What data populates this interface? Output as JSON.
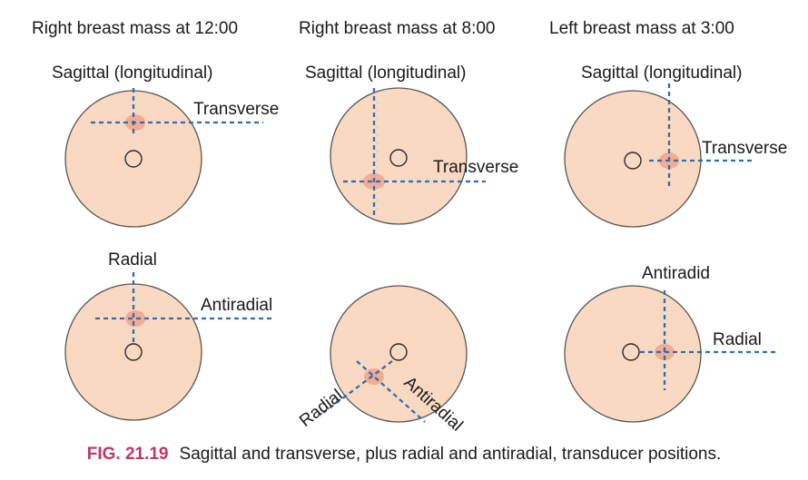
{
  "columns": [
    {
      "title": "Right breast mass at 12:00"
    },
    {
      "title": "Right breast mass at 8:00"
    },
    {
      "title": "Left breast mass at 3:00"
    }
  ],
  "panels": {
    "r12_top": {
      "vertical": "Sagittal (longitudinal)",
      "horizontal": "Transverse"
    },
    "r8_top": {
      "vertical": "Sagittal (longitudinal)",
      "horizontal": "Transverse"
    },
    "l3_top": {
      "vertical": "Sagittal (longitudinal)",
      "horizontal": "Transverse"
    },
    "r12_bottom": {
      "vertical": "Radial",
      "horizontal": "Antiradial"
    },
    "r8_bottom": {
      "radial": "Radial",
      "antiradial": "Antiradial"
    },
    "l3_bottom": {
      "vertical": "Antiradid",
      "horizontal": "Radial"
    }
  },
  "caption": {
    "number": "FIG. 21.19",
    "text": "Sagittal and transverse, plus radial and antiradial, transducer positions."
  },
  "colors": {
    "breast_fill": "#fad9c2",
    "mass": "#f2a98f",
    "transducer_line": "#2f6db0",
    "caption_accent": "#c0356a"
  }
}
